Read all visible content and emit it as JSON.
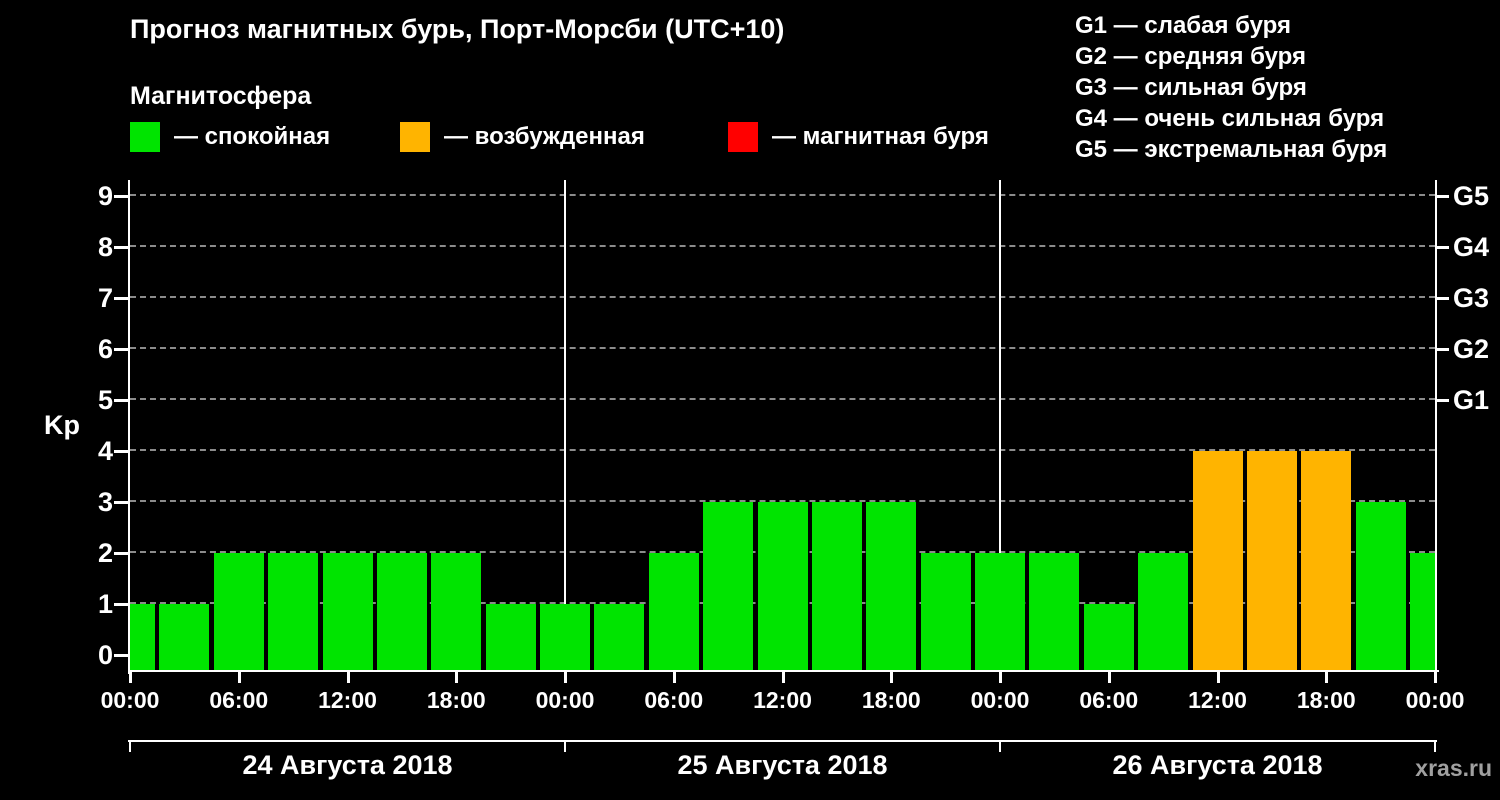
{
  "title": "Прогноз магнитных бурь, Порт-Морсби (UTC+10)",
  "subtitle": "Магнитосфера",
  "watermark": "xras.ru",
  "legend": {
    "items": [
      {
        "name": "quiet",
        "label": "— спокойная",
        "color": "#00e400"
      },
      {
        "name": "excited",
        "label": "— возбужденная",
        "color": "#ffb400"
      },
      {
        "name": "storm",
        "label": "— магнитная буря",
        "color": "#ff0000"
      }
    ]
  },
  "storm_scale_legend": [
    "G1 — слабая буря",
    "G2 — средняя буря",
    "G3 — сильная буря",
    "G4 — очень сильная буря",
    "G5 — экстремальная буря"
  ],
  "chart_data": {
    "type": "bar",
    "title": "Прогноз магнитных бурь, Порт-Морсби (UTC+10)",
    "ylabel": "Kp",
    "ylim": [
      0,
      9
    ],
    "yticks": [
      0,
      1,
      2,
      3,
      4,
      5,
      6,
      7,
      8,
      9
    ],
    "right_axis_labels": [
      {
        "value": 5,
        "label": "G1"
      },
      {
        "value": 6,
        "label": "G2"
      },
      {
        "value": 7,
        "label": "G3"
      },
      {
        "value": 8,
        "label": "G4"
      },
      {
        "value": 9,
        "label": "G5"
      }
    ],
    "grid": "dashed horizontal lines at integer Kp levels",
    "legend_position": "top",
    "step_hours": 3,
    "total_hours": 72,
    "x_tick_every_hours": 6,
    "x_tick_labels": [
      "00:00",
      "06:00",
      "12:00",
      "18:00",
      "00:00",
      "06:00",
      "12:00",
      "18:00",
      "00:00",
      "06:00",
      "12:00",
      "18:00",
      "00:00"
    ],
    "days": [
      {
        "date": "24 Августа 2018",
        "values": [
          1,
          1,
          2,
          2,
          2,
          2,
          2,
          1
        ]
      },
      {
        "date": "25 Августа 2018",
        "values": [
          1,
          1,
          2,
          3,
          3,
          3,
          3,
          2
        ]
      },
      {
        "date": "26 Августа 2018",
        "values": [
          2,
          2,
          1,
          2,
          4,
          4,
          4,
          3
        ]
      }
    ],
    "end_value": 2,
    "kp_values_3h": [
      1,
      1,
      2,
      2,
      2,
      2,
      2,
      1,
      1,
      1,
      2,
      3,
      3,
      3,
      3,
      2,
      2,
      2,
      1,
      2,
      4,
      4,
      4,
      3,
      2
    ],
    "colors": {
      "quiet": "#00e400",
      "excited": "#ffb400",
      "storm": "#ff0000"
    },
    "color_rule": {
      "quiet_max": 3,
      "excited_max": 4
    }
  }
}
